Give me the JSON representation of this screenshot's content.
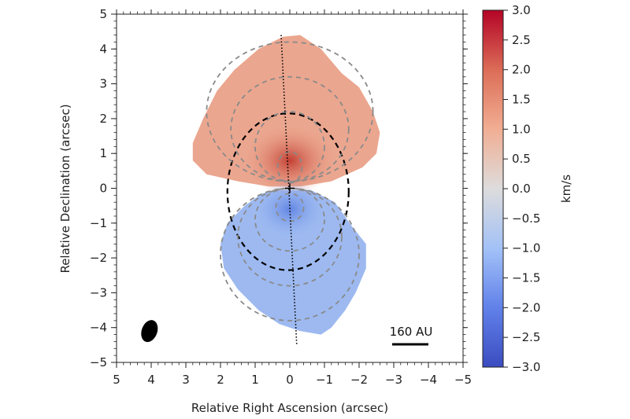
{
  "chart_data": {
    "type": "heatmap",
    "title": "",
    "xlabel": "Relative Right Ascension (arcsec)",
    "ylabel": "Relative Declination (arcsec)",
    "xlim": [
      5,
      -5
    ],
    "ylim": [
      -5,
      5
    ],
    "x_ticks": [
      5,
      4,
      3,
      2,
      1,
      0,
      -1,
      -2,
      -3,
      -4,
      -5
    ],
    "y_ticks": [
      5,
      4,
      3,
      2,
      1,
      0,
      -1,
      -2,
      -3,
      -4,
      -5
    ],
    "x_tick_labels": [
      "5",
      "4",
      "3",
      "2",
      "1",
      "0",
      "−1",
      "−2",
      "−3",
      "−4",
      "−5"
    ],
    "y_tick_labels": [
      "5",
      "4",
      "3",
      "2",
      "1",
      "0",
      "−1",
      "−2",
      "−3",
      "−4",
      "−5"
    ],
    "colorbar": {
      "label": "km/s",
      "range": [
        -3.0,
        3.0
      ],
      "ticks": [
        3.0,
        2.5,
        2.0,
        1.5,
        1.0,
        0.5,
        0.0,
        -0.5,
        -1.0,
        -1.5,
        -2.0,
        -2.5,
        -3.0
      ],
      "tick_labels": [
        "3.0",
        "2.5",
        "2.0",
        "1.5",
        "1.0",
        "0.5",
        "0.0",
        "−0.5",
        "−1.0",
        "−1.5",
        "−2.0",
        "−2.5",
        "−3.0"
      ],
      "colormap": "coolwarm",
      "colors": {
        "low": "#3b4cc0",
        "mid": "#dddcdc",
        "high": "#b40426"
      }
    },
    "center_marker": {
      "x": 0,
      "y": 0,
      "symbol": "+"
    },
    "axis_line": {
      "x1": 0.25,
      "y1": 4.4,
      "x2": -0.2,
      "y2": -4.5,
      "style": "dotted"
    },
    "scale_bar": {
      "label": "160 AU"
    },
    "beam": {
      "x": 4.05,
      "y": -4.1,
      "major": 0.65,
      "minor": 0.45
    },
    "lobes": [
      {
        "name": "redshifted",
        "velocity_max": 1.3,
        "outline": [
          [
            -0.3,
            4.4
          ],
          [
            -0.9,
            4.0
          ],
          [
            -1.5,
            3.3
          ],
          [
            -2.0,
            2.9
          ],
          [
            -2.4,
            2.2
          ],
          [
            -2.6,
            1.6
          ],
          [
            -2.5,
            1.0
          ],
          [
            -2.1,
            0.6
          ],
          [
            -1.2,
            0.2
          ],
          [
            -0.3,
            0.05
          ],
          [
            0.6,
            0.05
          ],
          [
            1.5,
            0.2
          ],
          [
            2.4,
            0.4
          ],
          [
            2.8,
            0.8
          ],
          [
            2.8,
            1.3
          ],
          [
            2.5,
            2.0
          ],
          [
            2.1,
            2.8
          ],
          [
            1.6,
            3.4
          ],
          [
            0.9,
            4.0
          ],
          [
            0.2,
            4.35
          ]
        ]
      },
      {
        "name": "blueshifted",
        "velocity_min": -1.5,
        "outline": [
          [
            0.3,
            -0.05
          ],
          [
            -0.6,
            -0.05
          ],
          [
            -1.3,
            -0.4
          ],
          [
            -1.8,
            -1.1
          ],
          [
            -2.2,
            -1.6
          ],
          [
            -2.2,
            -2.3
          ],
          [
            -1.9,
            -3.0
          ],
          [
            -1.6,
            -3.5
          ],
          [
            -1.2,
            -4.0
          ],
          [
            -0.9,
            -4.2
          ],
          [
            -0.3,
            -4.1
          ],
          [
            0.3,
            -3.9
          ],
          [
            0.9,
            -3.5
          ],
          [
            1.5,
            -2.9
          ],
          [
            1.9,
            -2.3
          ],
          [
            2.0,
            -1.6
          ],
          [
            1.8,
            -1.0
          ],
          [
            1.3,
            -0.5
          ],
          [
            0.8,
            -0.15
          ]
        ]
      }
    ],
    "contours": [
      {
        "style": "black-dashed",
        "cx": 0.05,
        "cy": -0.1,
        "rx": 1.75,
        "ry": 2.25
      },
      {
        "style": "grey-dashed",
        "cx": 0.0,
        "cy": 2.2,
        "rx": 2.4,
        "ry": 2.0
      },
      {
        "style": "grey-dashed",
        "cx": 0.0,
        "cy": 1.7,
        "rx": 1.7,
        "ry": 1.5
      },
      {
        "style": "grey-dashed",
        "cx": 0.0,
        "cy": 1.2,
        "rx": 1.0,
        "ry": 1.0
      },
      {
        "style": "grey-dashed",
        "cx": 0.0,
        "cy": 0.6,
        "rx": 0.35,
        "ry": 0.45
      },
      {
        "style": "grey-dashed",
        "cx": 0.0,
        "cy": -1.9,
        "rx": 2.0,
        "ry": 1.9
      },
      {
        "style": "grey-dashed",
        "cx": 0.0,
        "cy": -1.4,
        "rx": 1.5,
        "ry": 1.4
      },
      {
        "style": "grey-dashed",
        "cx": 0.0,
        "cy": -0.9,
        "rx": 1.0,
        "ry": 0.9
      },
      {
        "style": "grey-dashed",
        "cx": 0.0,
        "cy": -0.55,
        "rx": 0.4,
        "ry": 0.4
      }
    ]
  }
}
